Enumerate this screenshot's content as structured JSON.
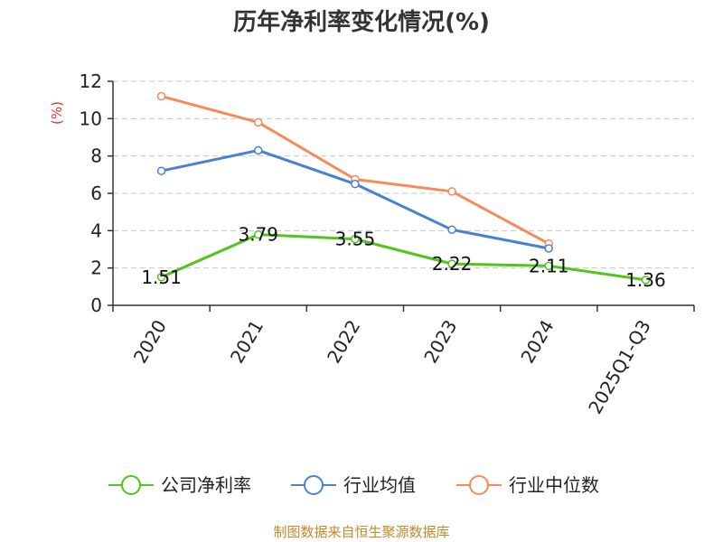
{
  "colors": {
    "series": [
      "#52c41a",
      "#4a7fd6",
      "#f48b58"
    ],
    "grid": "#c8c8c8",
    "axis": "#333333",
    "unit": "#e03030",
    "source": "#c08a2a"
  },
  "source_text": "制图数据来自恒生聚源数据库",
  "chart_data": {
    "type": "line",
    "title": "历年净利率变化情况(%)",
    "ylabel": "(%)",
    "xlabel": "",
    "ylim": [
      0,
      12
    ],
    "yticks": [
      0,
      2,
      4,
      6,
      8,
      10,
      12
    ],
    "grid": true,
    "legend_position": "bottom",
    "categories": [
      "2020",
      "2021",
      "2022",
      "2023",
      "2024",
      "2025Q1-Q3"
    ],
    "series": [
      {
        "name": "公司净利率",
        "values": [
          1.51,
          3.79,
          3.55,
          2.22,
          2.11,
          1.36
        ],
        "labels": [
          "1.51",
          "3.79",
          "3.55",
          "2.22",
          "2.11",
          "1.36"
        ]
      },
      {
        "name": "行业均值",
        "values": [
          7.2,
          8.3,
          6.5,
          4.05,
          3.05,
          null
        ]
      },
      {
        "name": "行业中位数",
        "values": [
          11.2,
          9.8,
          6.75,
          6.1,
          3.3,
          null
        ]
      }
    ]
  }
}
